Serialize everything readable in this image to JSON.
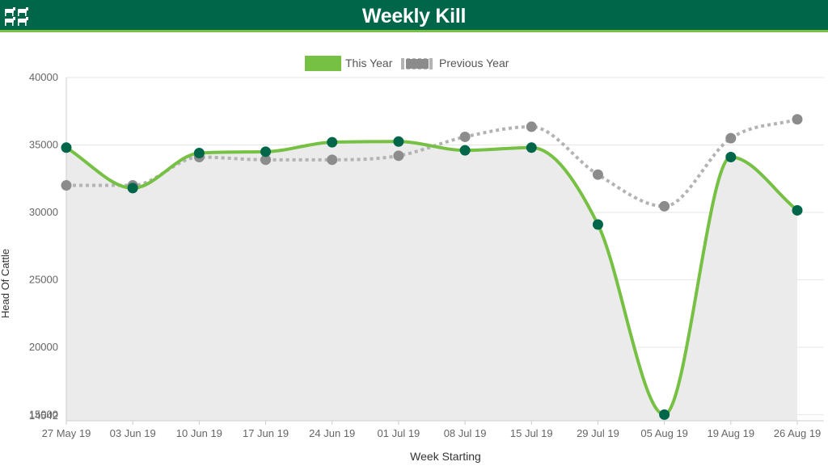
{
  "header": {
    "title": "Weekly Kill",
    "logo_icon": "cattle-herd-icon"
  },
  "colors": {
    "brand": "#00664a",
    "accent": "#7bc143",
    "this_year_line": "#76c043",
    "this_year_marker": "#00664a",
    "previous_year_line": "#b3b3b3",
    "previous_year_marker": "#8c8c8c",
    "area_fill": "#ebebeb"
  },
  "chart_data": {
    "type": "line",
    "xlabel": "Week Starting",
    "ylabel": "Head Of Cattle",
    "categories": [
      "27 May 19",
      "03 Jun 19",
      "10 Jun 19",
      "17 Jun 19",
      "24 Jun 19",
      "01 Jul 19",
      "08 Jul 19",
      "15 Jul 19",
      "29 Jul 19",
      "05 Aug 19",
      "19 Aug 19",
      "26 Aug 19"
    ],
    "ylim": [
      14542,
      40000
    ],
    "yticks": [
      {
        "value": 40000,
        "label": "40000"
      },
      {
        "value": 35000,
        "label": "35000"
      },
      {
        "value": 30000,
        "label": "30000"
      },
      {
        "value": 25000,
        "label": "25000"
      },
      {
        "value": 20000,
        "label": "20000"
      },
      {
        "value": 15000,
        "label": "15000"
      },
      {
        "value": 14542,
        "label": "14542"
      }
    ],
    "grid": true,
    "legend_position": "top-center",
    "series": [
      {
        "name": "This Year",
        "style": "solid-area",
        "values": [
          34800,
          31800,
          34400,
          34500,
          35200,
          35250,
          34600,
          34800,
          29100,
          15000,
          34100,
          30150
        ]
      },
      {
        "name": "Previous Year",
        "style": "dotted",
        "values": [
          32000,
          32000,
          34100,
          33900,
          33900,
          34200,
          35600,
          36350,
          32800,
          30450,
          35500,
          36900
        ]
      }
    ]
  }
}
